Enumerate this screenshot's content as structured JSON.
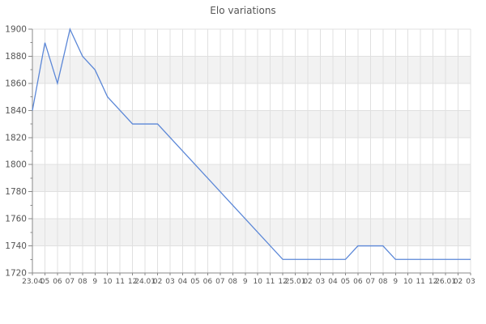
{
  "chart_data": {
    "type": "line",
    "title": "Elo variations",
    "x_format": "YY.MM",
    "x_tick_labels": [
      "23.04",
      "05",
      "06",
      "07",
      "08",
      "9",
      "10",
      "11",
      "12",
      "24.01",
      "02",
      "03",
      "04",
      "05",
      "06",
      "07",
      "08",
      "9",
      "10",
      "11",
      "12",
      "25.01",
      "02",
      "03",
      "04",
      "05",
      "06",
      "07",
      "08",
      "9",
      "10",
      "11",
      "12",
      "26.01",
      "02",
      "03"
    ],
    "y_tick_labels": [
      "1720",
      "1740",
      "1760",
      "1780",
      "1800",
      "1820",
      "1840",
      "1860",
      "1880",
      "1900"
    ],
    "ylim": [
      1720,
      1900
    ],
    "y_major_step": 20,
    "y_minor_step": 10,
    "grid": true,
    "legend": "none",
    "series": [
      {
        "name": "Elo",
        "color": "#5b87d7",
        "points": [
          [
            0,
            1840
          ],
          [
            1,
            1890
          ],
          [
            2,
            1860
          ],
          [
            3,
            1900
          ],
          [
            4,
            1880
          ],
          [
            5,
            1870
          ],
          [
            6,
            1850
          ],
          [
            8,
            1830
          ],
          [
            10,
            1830
          ],
          [
            20,
            1730
          ],
          [
            25,
            1730
          ],
          [
            26,
            1740
          ],
          [
            28,
            1740
          ],
          [
            29,
            1730
          ],
          [
            35,
            1730
          ]
        ]
      }
    ],
    "colors": {
      "background": "#ffffff",
      "band": "#f2f2f2",
      "grid": "#e0e0e0",
      "axis": "#888888",
      "tick_text": "#555555",
      "title": "#555555"
    }
  }
}
